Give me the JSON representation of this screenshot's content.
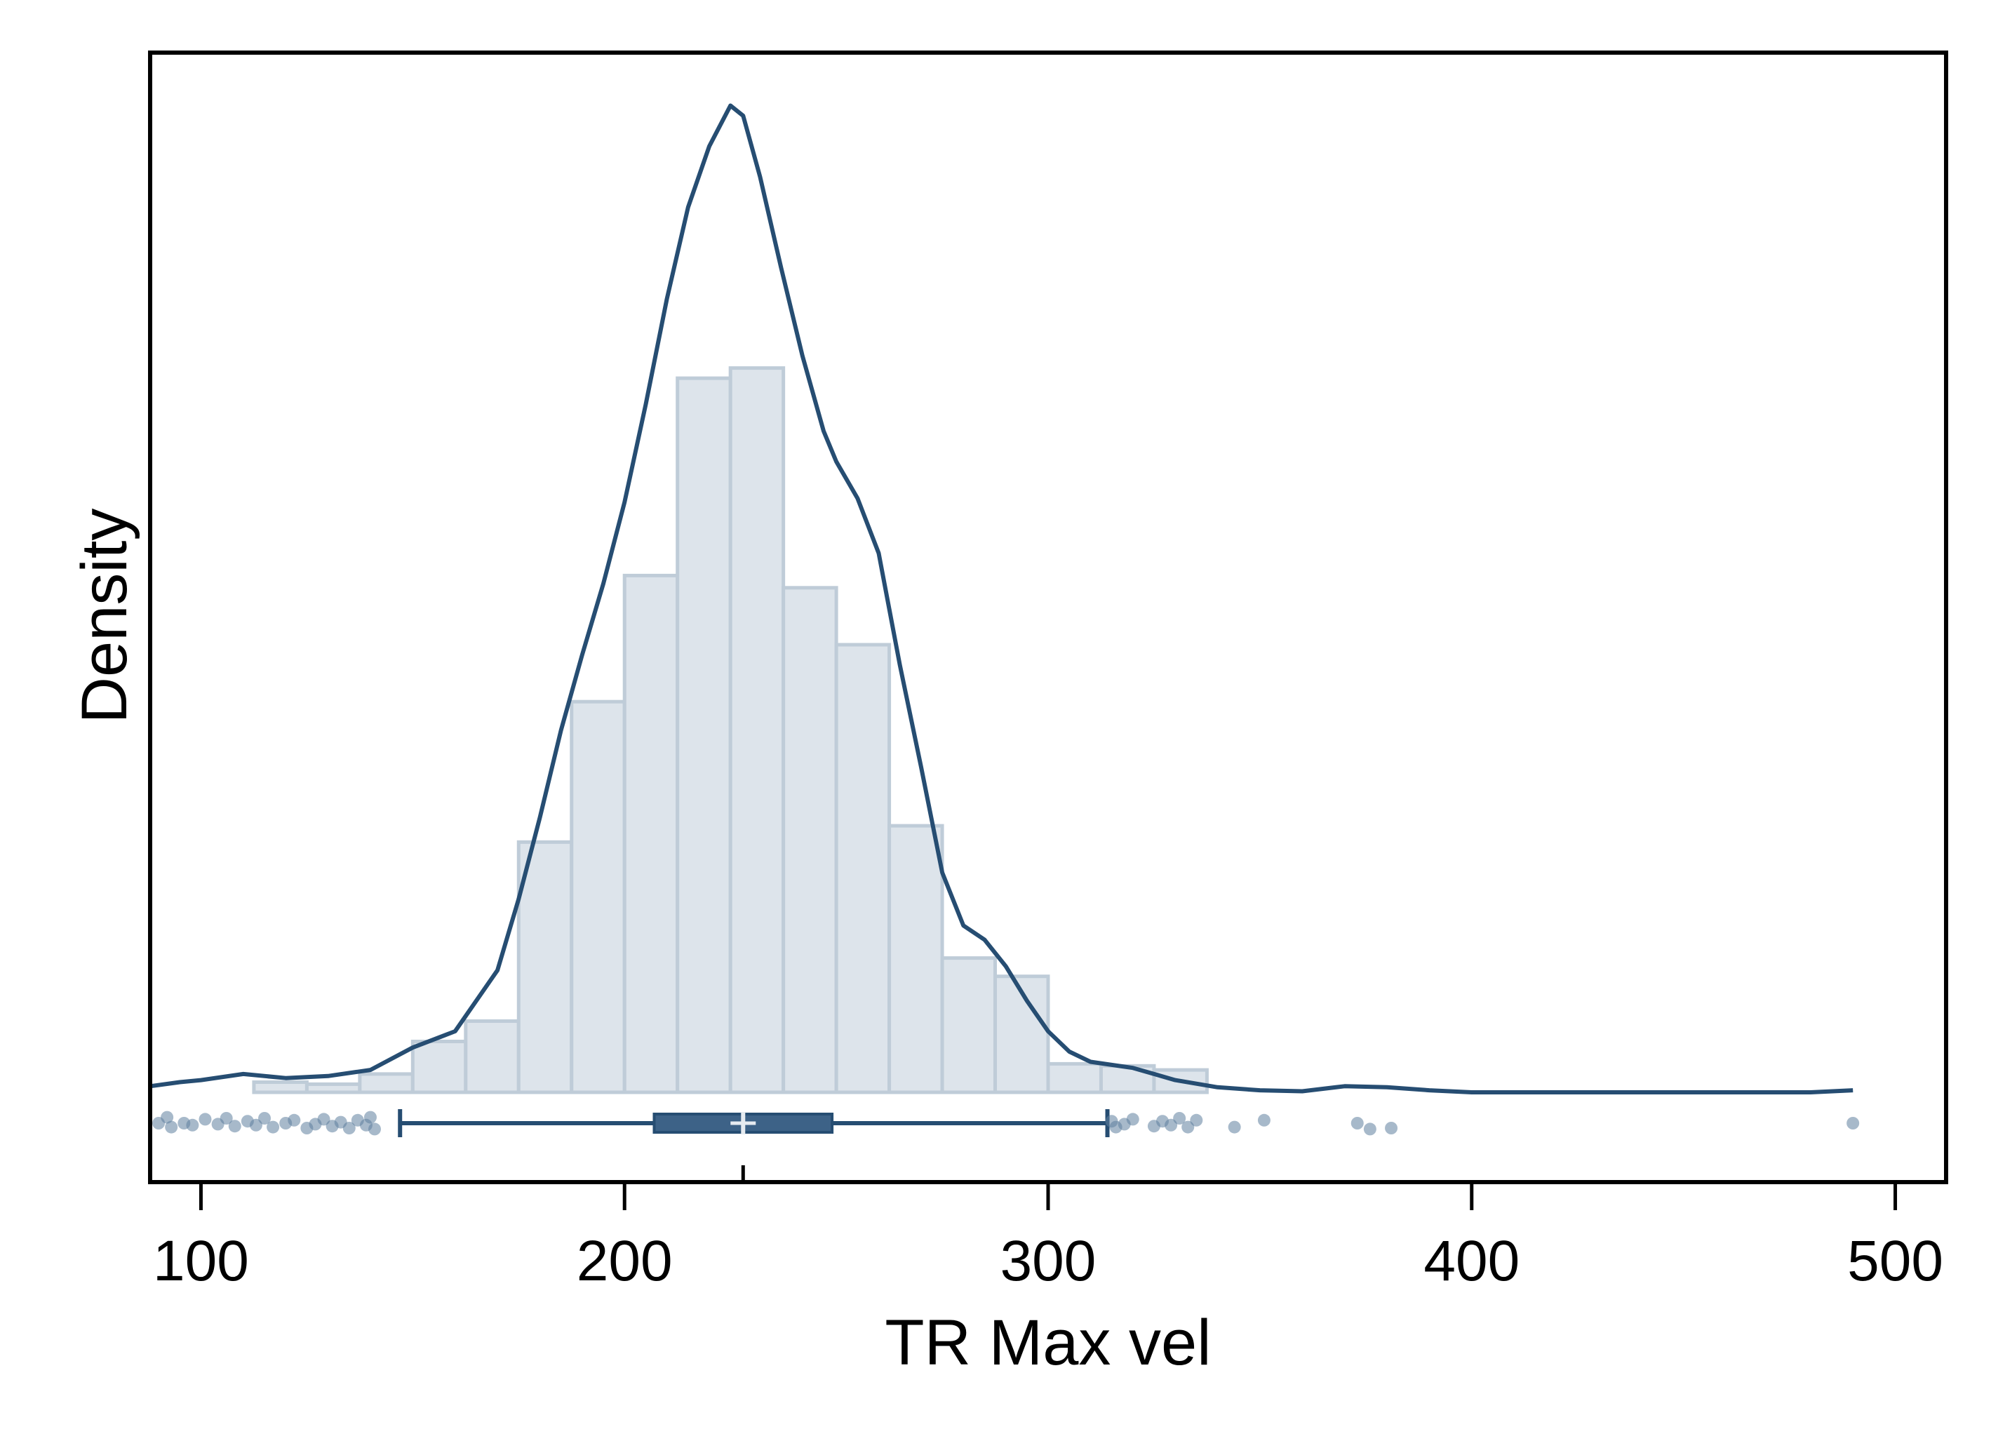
{
  "chart_data": {
    "type": "histogram",
    "xlabel": "TR Max vel",
    "ylabel": "Density",
    "xlim": [
      88,
      512
    ],
    "xticks": [
      100,
      200,
      300,
      400,
      500
    ],
    "grid": false,
    "colors": {
      "bar_fill": "#dde4eb",
      "bar_edge": "#bfccd8",
      "line": "#264d72",
      "box": "#3d6287",
      "points": "#5f7f9e"
    },
    "histogram": {
      "bin_width": 12.5,
      "bins": [
        {
          "start": 112.5,
          "height": 0.5
        },
        {
          "start": 125,
          "height": 0.4
        },
        {
          "start": 137.5,
          "height": 0.9
        },
        {
          "start": 150,
          "height": 2.5
        },
        {
          "start": 162.5,
          "height": 3.5
        },
        {
          "start": 175,
          "height": 12.3
        },
        {
          "start": 187.5,
          "height": 19.2
        },
        {
          "start": 200,
          "height": 25.4
        },
        {
          "start": 212.5,
          "height": 35.1
        },
        {
          "start": 225,
          "height": 35.6
        },
        {
          "start": 237.5,
          "height": 24.8
        },
        {
          "start": 250,
          "height": 22.0
        },
        {
          "start": 262.5,
          "height": 13.1
        },
        {
          "start": 275,
          "height": 6.6
        },
        {
          "start": 287.5,
          "height": 5.7
        },
        {
          "start": 300,
          "height": 1.4
        },
        {
          "start": 312.5,
          "height": 1.3
        },
        {
          "start": 325,
          "height": 1.1
        }
      ]
    },
    "density_curve": {
      "x": [
        88,
        95,
        100,
        110,
        120,
        130,
        140,
        150,
        160,
        170,
        175,
        180,
        185,
        190,
        195,
        200,
        205,
        210,
        215,
        220,
        225,
        228,
        232,
        237,
        242,
        247,
        250,
        255,
        260,
        265,
        270,
        275,
        280,
        285,
        290,
        295,
        300,
        305,
        310,
        320,
        330,
        340,
        350,
        360,
        370,
        380,
        390,
        400,
        450,
        480,
        490
      ],
      "y": [
        0.3,
        0.5,
        0.6,
        0.9,
        0.7,
        0.8,
        1.1,
        2.2,
        3.0,
        6.0,
        9.5,
        13.5,
        17.8,
        21.5,
        25.0,
        29.0,
        33.8,
        39.0,
        43.5,
        46.5,
        48.5,
        48.0,
        45.0,
        40.5,
        36.2,
        32.5,
        31.0,
        29.2,
        26.5,
        21.0,
        16.0,
        10.8,
        8.2,
        7.5,
        6.2,
        4.5,
        3.0,
        2.0,
        1.5,
        1.2,
        0.6,
        0.25,
        0.1,
        0.05,
        0.3,
        0.25,
        0.1,
        0.0,
        0.0,
        0.0,
        0.1
      ]
    },
    "boxplot": {
      "whisker_low": 147,
      "q1": 207,
      "median": 228,
      "q3": 249,
      "whisker_high": 314,
      "mean": 228
    },
    "outliers": [
      {
        "x": 90,
        "j": 0
      },
      {
        "x": 92,
        "j": -0.6
      },
      {
        "x": 93,
        "j": 0.4
      },
      {
        "x": 96,
        "j": 0
      },
      {
        "x": 98,
        "j": 0.2
      },
      {
        "x": 101,
        "j": -0.4
      },
      {
        "x": 104,
        "j": 0.1
      },
      {
        "x": 106,
        "j": -0.5
      },
      {
        "x": 108,
        "j": 0.3
      },
      {
        "x": 111,
        "j": -0.2
      },
      {
        "x": 113,
        "j": 0.2
      },
      {
        "x": 115,
        "j": -0.5
      },
      {
        "x": 117,
        "j": 0.4
      },
      {
        "x": 120,
        "j": 0
      },
      {
        "x": 122,
        "j": -0.3
      },
      {
        "x": 125,
        "j": 0.5
      },
      {
        "x": 127,
        "j": 0.1
      },
      {
        "x": 129,
        "j": -0.4
      },
      {
        "x": 131,
        "j": 0.3
      },
      {
        "x": 133,
        "j": -0.1
      },
      {
        "x": 135,
        "j": 0.5
      },
      {
        "x": 137,
        "j": -0.3
      },
      {
        "x": 139,
        "j": 0.2
      },
      {
        "x": 140,
        "j": -0.6
      },
      {
        "x": 141,
        "j": 0.6
      },
      {
        "x": 315,
        "j": -0.2
      },
      {
        "x": 316,
        "j": 0.4
      },
      {
        "x": 318,
        "j": 0.1
      },
      {
        "x": 320,
        "j": -0.4
      },
      {
        "x": 325,
        "j": 0.3
      },
      {
        "x": 327,
        "j": -0.2
      },
      {
        "x": 329,
        "j": 0.2
      },
      {
        "x": 331,
        "j": -0.5
      },
      {
        "x": 333,
        "j": 0.4
      },
      {
        "x": 335,
        "j": -0.3
      },
      {
        "x": 344,
        "j": 0.4
      },
      {
        "x": 351,
        "j": -0.3
      },
      {
        "x": 373,
        "j": 0
      },
      {
        "x": 376,
        "j": 0.6
      },
      {
        "x": 381,
        "j": 0.5
      },
      {
        "x": 490,
        "j": 0
      }
    ]
  }
}
